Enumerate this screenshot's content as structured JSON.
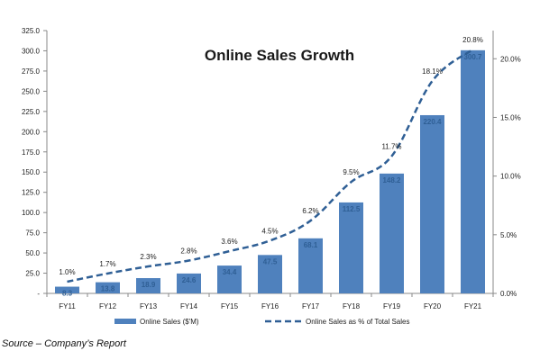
{
  "chart_data": {
    "type": "bar",
    "title": "Online Sales Growth",
    "categories": [
      "FY11",
      "FY12",
      "FY13",
      "FY14",
      "FY15",
      "FY16",
      "FY17",
      "FY18",
      "FY19",
      "FY20",
      "FY21"
    ],
    "series": [
      {
        "name": "Online Sales ($'M)",
        "type": "bar",
        "axis": "left",
        "values": [
          8.3,
          13.8,
          18.9,
          24.6,
          34.4,
          47.5,
          68.1,
          112.5,
          148.2,
          220.4,
          300.7
        ],
        "labels": [
          "8.3",
          "13.8",
          "18.9",
          "24.6",
          "34.4",
          "47.5",
          "68.1",
          "112.5",
          "148.2",
          "220.4",
          "300.7"
        ],
        "color": "#4f81bd"
      },
      {
        "name": "Online Sales as % of Total Sales",
        "type": "line",
        "style": "dashed",
        "axis": "right",
        "values": [
          1.0,
          1.7,
          2.3,
          2.8,
          3.6,
          4.5,
          6.2,
          9.5,
          11.7,
          18.1,
          20.8
        ],
        "labels": [
          "1.0%",
          "1.7%",
          "2.3%",
          "2.8%",
          "3.6%",
          "4.5%",
          "6.2%",
          "9.5%",
          "11.7%",
          "18.1%",
          "20.8%"
        ],
        "color": "#2f5f95"
      }
    ],
    "y_left": {
      "ylim": [
        0,
        325
      ],
      "ticks": [
        0,
        25,
        50,
        75,
        100,
        125,
        150,
        175,
        200,
        225,
        250,
        275,
        300,
        325
      ],
      "tick_labels": [
        "-",
        "25.0",
        "50.0",
        "75.0",
        "100.0",
        "125.0",
        "150.0",
        "175.0",
        "200.0",
        "225.0",
        "250.0",
        "275.0",
        "300.0",
        "325.0"
      ]
    },
    "y_right": {
      "ylim": [
        0,
        22.4
      ],
      "ticks": [
        0,
        5,
        10,
        15,
        20
      ],
      "tick_labels": [
        "0.0%",
        "5.0%",
        "10.0%",
        "15.0%",
        "20.0%"
      ]
    },
    "grid": false,
    "legend_position": "bottom"
  },
  "source": "Source – Company’s Report"
}
